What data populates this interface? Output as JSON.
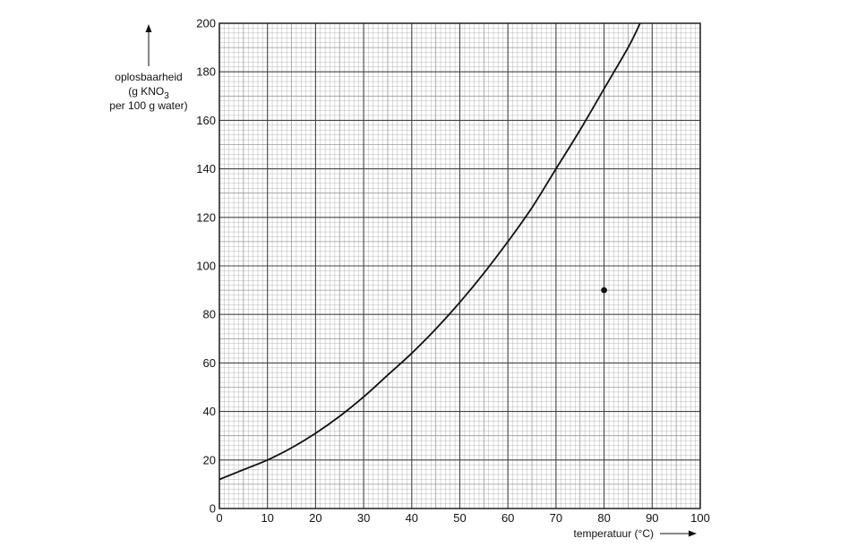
{
  "chart_data": {
    "type": "line",
    "title": "",
    "ylabel_lines": [
      "oplosbaarheid",
      "(g KNO",
      "per 100 g water)"
    ],
    "ylabel_subscript": "3",
    "xlabel": "temperatuur (°C)",
    "xlim": [
      0,
      100
    ],
    "ylim": [
      0,
      200
    ],
    "x_ticks": [
      "0",
      "10",
      "20",
      "30",
      "40",
      "50",
      "60",
      "70",
      "80",
      "90",
      "100"
    ],
    "y_ticks": [
      "0",
      "20",
      "40",
      "60",
      "80",
      "100",
      "120",
      "140",
      "160",
      "180",
      "200"
    ],
    "grid": true,
    "series": [
      {
        "x": [
          0,
          5,
          10,
          15,
          20,
          25,
          30,
          35,
          40,
          45,
          50,
          55,
          60,
          65,
          70,
          75,
          80,
          85,
          87.5
        ],
        "y": [
          12,
          16,
          20,
          25,
          31,
          38,
          46,
          55,
          64,
          74,
          85,
          97,
          110,
          124,
          140,
          156,
          173,
          190,
          200
        ]
      }
    ],
    "points": [
      {
        "x": 80,
        "y": 90
      }
    ]
  },
  "colors": {
    "ink": "#111111",
    "grid_major": "#444444",
    "grid_minor": "#9a9a9a",
    "background": "#ffffff"
  }
}
